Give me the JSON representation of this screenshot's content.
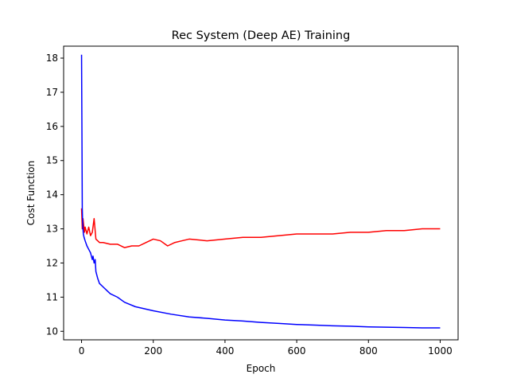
{
  "chart_data": {
    "type": "line",
    "title": "Rec System (Deep AE) Training",
    "xlabel": "Epoch",
    "ylabel": "Cost Function",
    "xlim": [
      -50,
      1050
    ],
    "ylim": [
      9.75,
      18.35
    ],
    "xticks": [
      0,
      200,
      400,
      600,
      800,
      1000
    ],
    "yticks": [
      10,
      11,
      12,
      13,
      14,
      15,
      16,
      17,
      18
    ],
    "grid": false,
    "legend": "none",
    "series": [
      {
        "color": "#ff0000",
        "x": [
          0,
          2,
          4,
          6,
          8,
          10,
          15,
          20,
          25,
          30,
          35,
          40,
          50,
          60,
          80,
          100,
          120,
          140,
          160,
          180,
          200,
          220,
          240,
          260,
          280,
          300,
          350,
          400,
          450,
          500,
          550,
          600,
          650,
          700,
          750,
          800,
          850,
          900,
          950,
          1000
        ],
        "y": [
          13.6,
          13.0,
          13.3,
          13.1,
          12.9,
          13.05,
          12.85,
          13.05,
          12.8,
          12.9,
          13.3,
          12.7,
          12.6,
          12.6,
          12.55,
          12.55,
          12.45,
          12.5,
          12.5,
          12.6,
          12.7,
          12.65,
          12.5,
          12.6,
          12.65,
          12.7,
          12.65,
          12.7,
          12.75,
          12.75,
          12.8,
          12.85,
          12.85,
          12.85,
          12.9,
          12.9,
          12.95,
          12.95,
          13.0,
          13.0
        ]
      },
      {
        "color": "#0000ff",
        "x": [
          0,
          1,
          2,
          3,
          4,
          5,
          7,
          10,
          15,
          20,
          25,
          30,
          32,
          35,
          38,
          40,
          45,
          50,
          60,
          70,
          80,
          100,
          120,
          150,
          200,
          250,
          300,
          350,
          400,
          450,
          500,
          550,
          600,
          650,
          700,
          750,
          800,
          850,
          900,
          950,
          1000
        ],
        "y": [
          18.1,
          16.0,
          13.6,
          13.2,
          13.0,
          12.85,
          12.75,
          12.65,
          12.5,
          12.4,
          12.3,
          12.1,
          12.2,
          12.0,
          12.1,
          11.75,
          11.55,
          11.4,
          11.3,
          11.2,
          11.1,
          11.0,
          10.85,
          10.72,
          10.6,
          10.5,
          10.42,
          10.38,
          10.33,
          10.3,
          10.26,
          10.23,
          10.2,
          10.18,
          10.16,
          10.15,
          10.13,
          10.12,
          10.11,
          10.1,
          10.1
        ]
      }
    ]
  }
}
